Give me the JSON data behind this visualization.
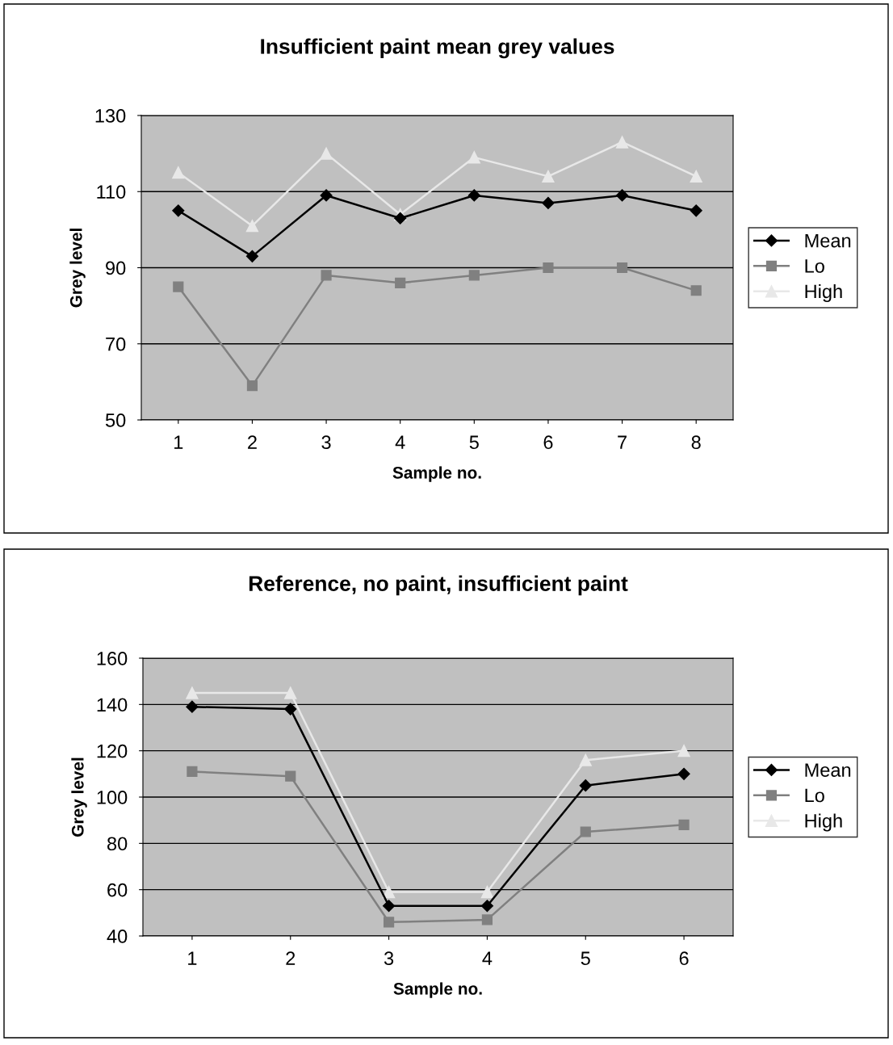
{
  "chart_data": [
    {
      "type": "line",
      "title": "Insufficient paint mean grey values",
      "xlabel": "Sample no.",
      "ylabel": "Grey level",
      "categories": [
        "1",
        "2",
        "3",
        "4",
        "5",
        "6",
        "7",
        "8"
      ],
      "ylim": [
        50,
        130
      ],
      "yticks": [
        50,
        70,
        90,
        110,
        130
      ],
      "grid": "y",
      "legend": "right",
      "series": [
        {
          "name": "Mean",
          "color": "#000000",
          "marker": "diamond",
          "values": [
            105,
            93,
            109,
            103,
            109,
            107,
            109,
            105
          ]
        },
        {
          "name": "Lo",
          "color": "#808080",
          "marker": "square",
          "values": [
            85,
            59,
            88,
            86,
            88,
            90,
            90,
            84
          ]
        },
        {
          "name": "High",
          "color": "#e8e8e8",
          "marker": "triangle",
          "values": [
            115,
            101,
            120,
            104,
            119,
            114,
            123,
            114
          ]
        }
      ]
    },
    {
      "type": "line",
      "title": "Reference, no paint, insufficient paint",
      "xlabel": "Sample no.",
      "ylabel": "Grey level",
      "categories": [
        "1",
        "2",
        "3",
        "4",
        "5",
        "6"
      ],
      "ylim": [
        40,
        160
      ],
      "yticks": [
        40,
        60,
        80,
        100,
        120,
        140,
        160
      ],
      "grid": "y",
      "legend": "right",
      "series": [
        {
          "name": "Mean",
          "color": "#000000",
          "marker": "diamond",
          "values": [
            139,
            138,
            53,
            53,
            105,
            110
          ]
        },
        {
          "name": "Lo",
          "color": "#808080",
          "marker": "square",
          "values": [
            111,
            109,
            46,
            47,
            85,
            88
          ]
        },
        {
          "name": "High",
          "color": "#e8e8e8",
          "marker": "triangle",
          "values": [
            145,
            145,
            59,
            59,
            116,
            120
          ]
        }
      ]
    }
  ]
}
